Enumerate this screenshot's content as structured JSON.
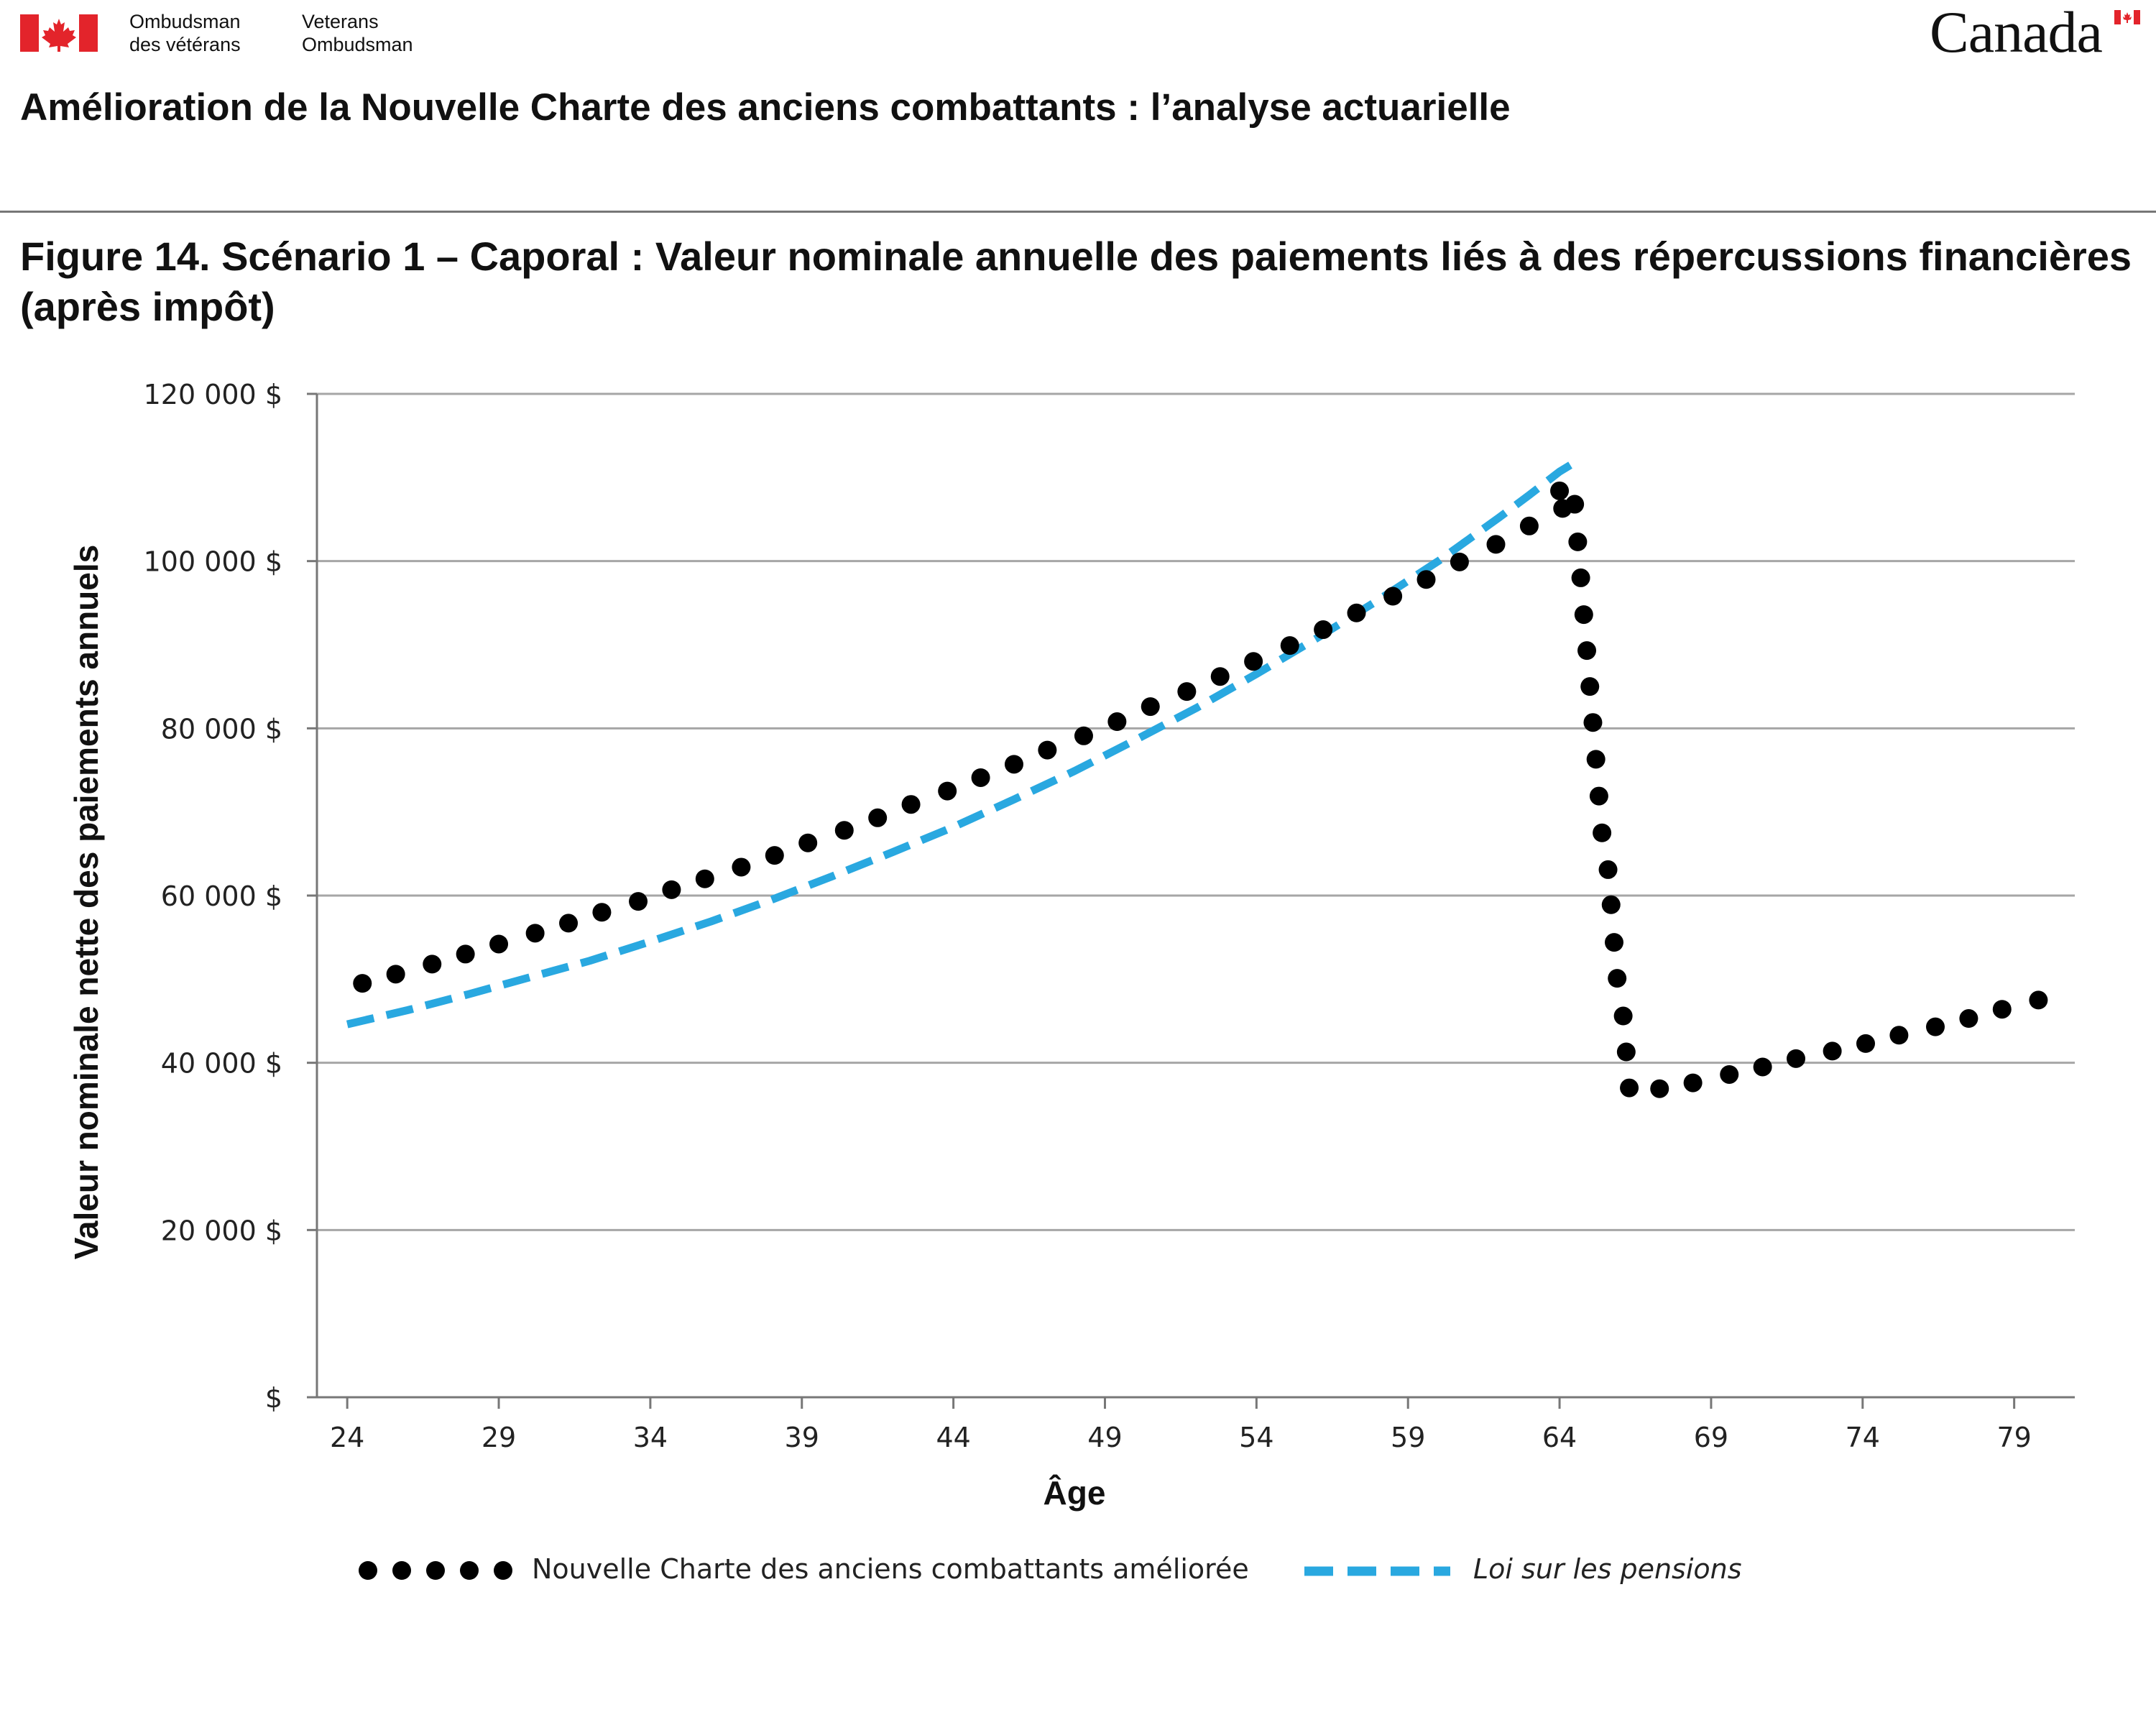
{
  "header": {
    "agency_fr_line1": "Ombudsman",
    "agency_fr_line2": "des vétérans",
    "agency_en_line1": "Veterans",
    "agency_en_line2": "Ombudsman",
    "wordmark": "Canada",
    "document_title": "Amélioration de la Nouvelle Charte des anciens combattants : l’analyse actuarielle"
  },
  "figure_title": "Figure 14. Scénario 1 – Caporal : Valeur nominale annuelle des paiements liés à des répercussions financières (après impôt)",
  "colors": {
    "flag_red": "#e3242b",
    "series_ncac": "#000000",
    "series_pension": "#29a8e0",
    "grid": "#a6a6a6"
  },
  "icons": {
    "flag": "canada-flag-icon"
  },
  "chart_data": {
    "type": "line",
    "xlabel": "Âge",
    "ylabel": "Valeur nominale nette des paiements annuels",
    "xlim": [
      23,
      81
    ],
    "ylim": [
      0,
      120000
    ],
    "grid": true,
    "legend_position": "bottom",
    "x_ticks": [
      24,
      29,
      34,
      39,
      44,
      49,
      54,
      59,
      64,
      69,
      74,
      79
    ],
    "x_tick_labels": [
      "24",
      "29",
      "34",
      "39",
      "44",
      "49",
      "54",
      "59",
      "64",
      "69",
      "74",
      "79"
    ],
    "y_ticks": [
      0,
      20000,
      40000,
      60000,
      80000,
      100000,
      120000
    ],
    "y_tick_labels": [
      "$",
      "20 000 $",
      "40 000 $",
      "60 000 $",
      "80 000 $",
      "100 000 $",
      "120 000 $"
    ],
    "series": [
      {
        "name": "Nouvelle Charte des anciens combattants améliorée",
        "style": "dotted",
        "color": "#000000",
        "points": [
          [
            24.5,
            49500
          ],
          [
            25.6,
            50600
          ],
          [
            26.8,
            51800
          ],
          [
            27.9,
            53000
          ],
          [
            29.0,
            54200
          ],
          [
            30.2,
            55500
          ],
          [
            31.3,
            56700
          ],
          [
            32.4,
            58000
          ],
          [
            33.6,
            59300
          ],
          [
            34.7,
            60700
          ],
          [
            35.8,
            62000
          ],
          [
            37.0,
            63400
          ],
          [
            38.1,
            64800
          ],
          [
            39.2,
            66300
          ],
          [
            40.4,
            67800
          ],
          [
            41.5,
            69300
          ],
          [
            42.6,
            70900
          ],
          [
            43.8,
            72500
          ],
          [
            44.9,
            74100
          ],
          [
            46.0,
            75700
          ],
          [
            47.1,
            77400
          ],
          [
            48.3,
            79100
          ],
          [
            49.4,
            80800
          ],
          [
            50.5,
            82600
          ],
          [
            51.7,
            84400
          ],
          [
            52.8,
            86200
          ],
          [
            53.9,
            88000
          ],
          [
            55.1,
            89900
          ],
          [
            56.2,
            91800
          ],
          [
            57.3,
            93800
          ],
          [
            58.5,
            95800
          ],
          [
            59.6,
            97800
          ],
          [
            60.7,
            99900
          ],
          [
            61.9,
            102000
          ],
          [
            63.0,
            104200
          ],
          [
            64.1,
            106300
          ],
          [
            64.0,
            108400
          ],
          [
            64.5,
            106800
          ],
          [
            64.6,
            102300
          ],
          [
            64.7,
            98000
          ],
          [
            64.8,
            93600
          ],
          [
            64.9,
            89300
          ],
          [
            65.0,
            85000
          ],
          [
            65.1,
            80700
          ],
          [
            65.2,
            76300
          ],
          [
            65.3,
            71900
          ],
          [
            65.4,
            67500
          ],
          [
            65.6,
            63100
          ],
          [
            65.7,
            58900
          ],
          [
            65.8,
            54400
          ],
          [
            65.9,
            50100
          ],
          [
            66.1,
            45600
          ],
          [
            66.2,
            41300
          ],
          [
            66.3,
            37000
          ],
          [
            67.3,
            36900
          ],
          [
            68.4,
            37600
          ],
          [
            69.6,
            38600
          ],
          [
            70.7,
            39500
          ],
          [
            71.8,
            40500
          ],
          [
            73.0,
            41400
          ],
          [
            74.1,
            42300
          ],
          [
            75.2,
            43300
          ],
          [
            76.4,
            44300
          ],
          [
            77.5,
            45300
          ],
          [
            78.6,
            46400
          ],
          [
            79.8,
            47500
          ]
        ]
      },
      {
        "name": "Loi sur les pensions",
        "style": "dashed",
        "color": "#29a8e0",
        "points": [
          [
            24.0,
            44600
          ],
          [
            26.0,
            46300
          ],
          [
            28.0,
            48200
          ],
          [
            30.0,
            50200
          ],
          [
            32.0,
            52200
          ],
          [
            34.0,
            54500
          ],
          [
            36.0,
            56900
          ],
          [
            38.0,
            59500
          ],
          [
            40.0,
            62300
          ],
          [
            42.0,
            65200
          ],
          [
            44.0,
            68200
          ],
          [
            46.0,
            71500
          ],
          [
            48.0,
            74900
          ],
          [
            50.0,
            78600
          ],
          [
            52.0,
            82400
          ],
          [
            54.0,
            86500
          ],
          [
            56.0,
            90800
          ],
          [
            58.0,
            95300
          ],
          [
            60.0,
            100000
          ],
          [
            61.0,
            102600
          ],
          [
            62.0,
            105200
          ],
          [
            63.0,
            107900
          ],
          [
            64.0,
            110700
          ],
          [
            64.5,
            111800
          ]
        ]
      }
    ]
  },
  "legend": {
    "items": [
      {
        "label": "Nouvelle Charte des anciens combattants améliorée",
        "style": "dotted"
      },
      {
        "label": "Loi sur les pensions",
        "style": "dashed"
      }
    ]
  }
}
